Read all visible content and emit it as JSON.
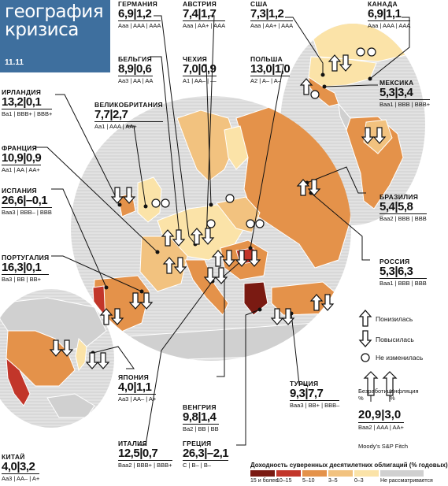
{
  "title_line1": "география",
  "title_line2": "кризиса",
  "date": "11.11",
  "colors": {
    "c15": "#7a1a12",
    "c10": "#c2362a",
    "c5": "#e4924a",
    "c3": "#f2c27f",
    "c0": "#fbe3a8",
    "na": "#d0d0d0",
    "sea": "#e4e4e4",
    "title_bg": "#3e6f9e"
  },
  "legend": {
    "up_label": "Понизилась",
    "down_label": "Повысилась",
    "same_label": "Не изменилась",
    "col1_label": "Безработица %",
    "col2_label": "Инфляция %",
    "example_values": "20,9|3,0",
    "example_ratings": "Baa2 | AAA | AA+",
    "agencies": "Moody's S&P  Fitch"
  },
  "scale": {
    "caption": "Доходность суверенных десятилетних облигаций (% годовых)",
    "items": [
      {
        "label": "15 и более",
        "color": "#7a1a12"
      },
      {
        "label": "10–15",
        "color": "#c2362a"
      },
      {
        "label": "5–10",
        "color": "#e4924a"
      },
      {
        "label": "3–5",
        "color": "#f2c27f"
      },
      {
        "label": "0–3",
        "color": "#fbe3a8"
      },
      {
        "label": "Не рассматривается",
        "color": "#d0d0d0"
      }
    ]
  },
  "countries": [
    {
      "name": "ГЕРМАНИЯ",
      "values": "6,9|1,2",
      "ratings": "Aaa | AAA | AAA"
    },
    {
      "name": "АВСТРИЯ",
      "values": "7,4|1,7",
      "ratings": "Aaa | AA+ | AAA"
    },
    {
      "name": "США",
      "values": "7,3|1,2",
      "ratings": "Aaa | AA+ | AAA"
    },
    {
      "name": "КАНАДА",
      "values": "6,9|1,1",
      "ratings": "Aaa | AAA | AAA"
    },
    {
      "name": "БЕЛЬГИЯ",
      "values": "8,9|0,6",
      "ratings": "Aa3 | AA | AA"
    },
    {
      "name": "ЧЕХИЯ",
      "values": "7,0|0,9",
      "ratings": "A1 | AA– | —"
    },
    {
      "name": "ПОЛЬША",
      "values": "13,0|1,0",
      "ratings": "A2 | A– | A–"
    },
    {
      "name": "МЕКСИКА",
      "values": "5,3|3,4",
      "ratings": "Baa1 | BBB | BBB+"
    },
    {
      "name": "ИРЛАНДИЯ",
      "values": "13,2|0,1",
      "ratings": "Ba1 | BBB+ | BBB+"
    },
    {
      "name": "ВЕЛИКОБРИТАНИЯ",
      "values": "7,7|2,7",
      "ratings": "Aa1 | AAA | AA+"
    },
    {
      "name": "ФРАНЦИЯ",
      "values": "10,9|0,9",
      "ratings": "Aa1 | AA | AA+"
    },
    {
      "name": "ИСПАНИЯ",
      "values": "26,6|–0,1",
      "ratings": "Baa3 | BBB– | BBB"
    },
    {
      "name": "БРАЗИЛИЯ",
      "values": "5,4|5,8",
      "ratings": "Baa2 | BBB | BBB"
    },
    {
      "name": "ПОРТУГАЛИЯ",
      "values": "16,3|0,1",
      "ratings": "Ba3 | BB | BB+"
    },
    {
      "name": "РОССИЯ",
      "values": "5,3|6,3",
      "ratings": "Baa1 | BBB | BBB"
    },
    {
      "name": "ЯПОНИЯ",
      "values": "4,0|1,1",
      "ratings": "Aa3 | AA– | A+"
    },
    {
      "name": "ТУРЦИЯ",
      "values": "9,3|7,7",
      "ratings": "Baa3 | BB+ | BBB–"
    },
    {
      "name": "ВЕНГРИЯ",
      "values": "9,8|1,4",
      "ratings": "Ba2 | BB | BB"
    },
    {
      "name": "ИТАЛИЯ",
      "values": "12,5|0,7",
      "ratings": "Baa2 | BBB+ | BBB+"
    },
    {
      "name": "ГРЕЦИЯ",
      "values": "26,3|–2,1",
      "ratings": "C | B– | B–"
    },
    {
      "name": "КИТАЙ",
      "values": "4,0|3,2",
      "ratings": "Aa3 | AA– | A+"
    }
  ]
}
